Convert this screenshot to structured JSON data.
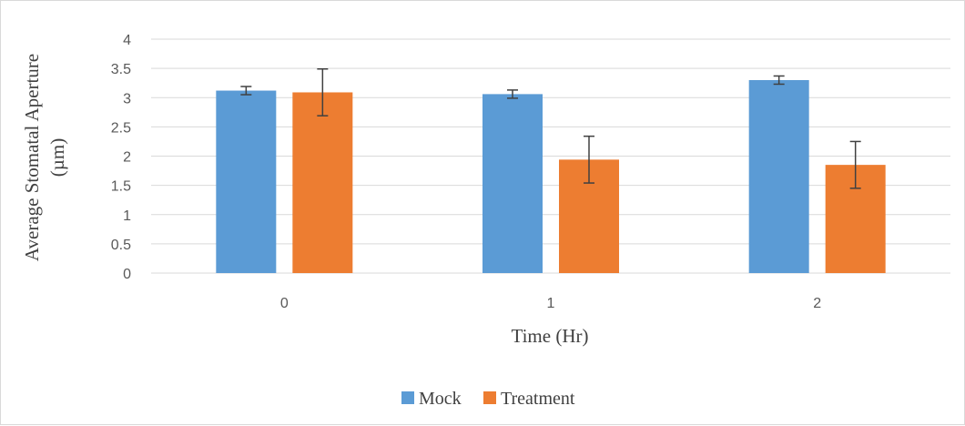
{
  "chart_data": {
    "type": "bar",
    "categories": [
      "0",
      "1",
      "2"
    ],
    "series": [
      {
        "name": "Mock",
        "values": [
          3.12,
          3.06,
          3.3
        ],
        "error": [
          0.07,
          0.07,
          0.07
        ],
        "color": "#5b9bd5"
      },
      {
        "name": "Treatment",
        "values": [
          3.09,
          1.94,
          1.85
        ],
        "error": [
          0.4,
          0.4,
          0.4
        ],
        "color": "#ed7d31"
      }
    ],
    "xlabel": "Time (Hr)",
    "ylabel": [
      "Average Stomatal Aperture",
      "(µm)"
    ],
    "ylim": [
      0,
      4
    ],
    "yticks": [
      "0",
      "0.5",
      "1",
      "1.5",
      "2",
      "2.5",
      "3",
      "3.5",
      "4"
    ],
    "grid": true,
    "legend": "bottom",
    "gridColor": "#d9d9d9",
    "errorColor": "#404040"
  }
}
